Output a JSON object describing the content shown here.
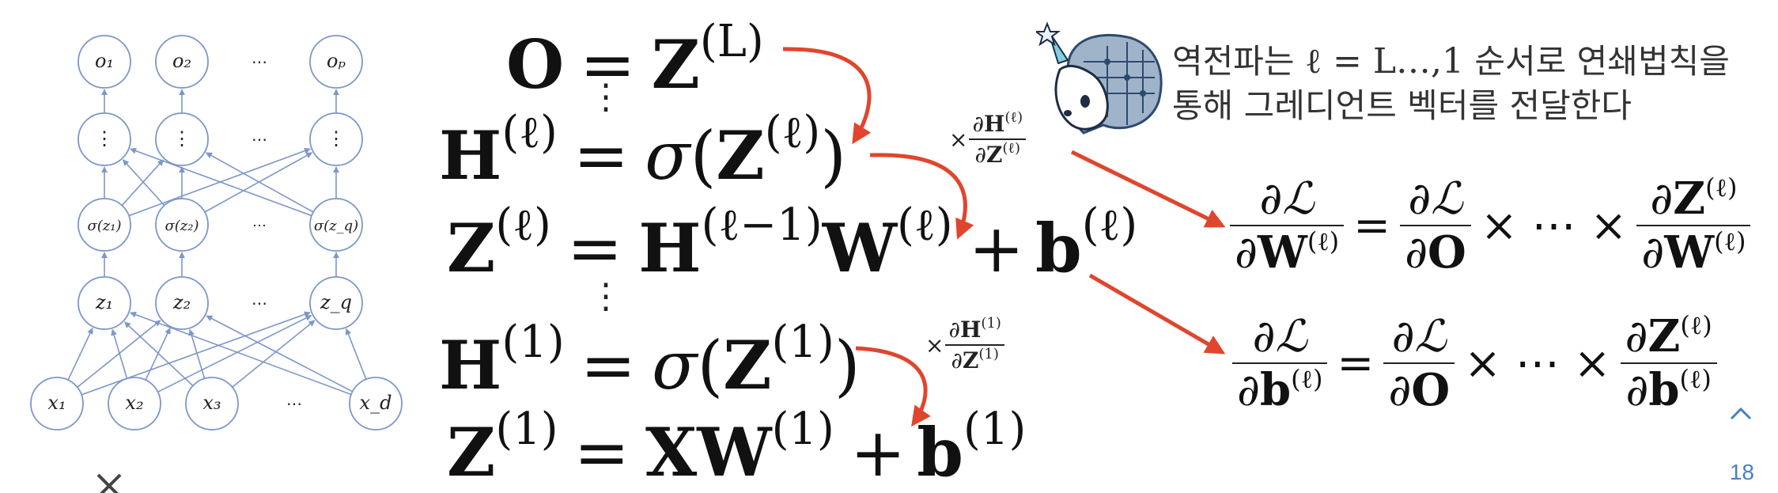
{
  "network": {
    "outputs": [
      "o₁",
      "o₂",
      "⋯",
      "oₚ"
    ],
    "hidden": [
      "⋮",
      "⋮",
      "⋯",
      "⋮"
    ],
    "activations": [
      "σ(z₁)",
      "σ(z₂)",
      "⋯",
      "σ(z_q)"
    ],
    "preacts": [
      "z₁",
      "z₂",
      "⋯",
      "z_q"
    ],
    "inputs": [
      "x₁",
      "x₂",
      "x₃",
      "⋯",
      "x_d"
    ]
  },
  "forward": {
    "row1": {
      "lhs": "O",
      "eq": "=",
      "rhs": "Z",
      "rhs_sup": "(L)"
    },
    "row2": {
      "lhs": "H",
      "lhs_sup": "(ℓ)",
      "eq": "=",
      "sigma": "σ",
      "open": "(",
      "arg": "Z",
      "arg_sup": "(ℓ)",
      "close": ")"
    },
    "row3": {
      "lhs": "Z",
      "lhs_sup": "(ℓ)",
      "eq": "=",
      "h": "H",
      "h_sup": "(ℓ−1)",
      "w": "W",
      "w_sup": "(ℓ)",
      "plus": "+",
      "b": "b",
      "b_sup": "(ℓ)"
    },
    "row4": {
      "lhs": "H",
      "lhs_sup": "(1)",
      "eq": "=",
      "sigma": "σ",
      "open": "(",
      "arg": "Z",
      "arg_sup": "(1)",
      "close": ")"
    },
    "row5": {
      "lhs": "Z",
      "lhs_sup": "(1)",
      "eq": "=",
      "xw": "XW",
      "xw_sup": "(1)",
      "plus": "+",
      "b": "b",
      "b_sup": "(1)"
    },
    "vdots": "⋮"
  },
  "factors": {
    "times": "×",
    "f1": {
      "partial": "∂",
      "num": "H",
      "num_sup": "(ℓ)",
      "den": "Z",
      "den_sup": "(ℓ)"
    },
    "f2": {
      "partial": "∂",
      "num": "H",
      "num_sup": "(1)",
      "den": "Z",
      "den_sup": "(1)"
    }
  },
  "gradients": {
    "partial": "∂",
    "loss": "ℒ",
    "eq": "=",
    "dots": "× ⋯ ×",
    "o": "O",
    "w": {
      "den": "W",
      "den_sup": "(ℓ)",
      "num2": "Z",
      "num2_sup": "(ℓ)",
      "den2": "W",
      "den2_sup": "(ℓ)"
    },
    "b": {
      "den": "b",
      "den_sup": "(ℓ)",
      "num2": "Z",
      "num2_sup": "(ℓ)",
      "den2": "b",
      "den2_sup": "(ℓ)"
    }
  },
  "note": {
    "line1_a": "역전파는 ",
    "line1_math": "ℓ = L…,1",
    "line1_b": " 순서로 연쇄법칙을",
    "line2": "통해 그레디언트 벡터를 전달한다"
  },
  "page_number": "18",
  "colors": {
    "node": "#7d97c8",
    "arrow": "#e0452d"
  }
}
